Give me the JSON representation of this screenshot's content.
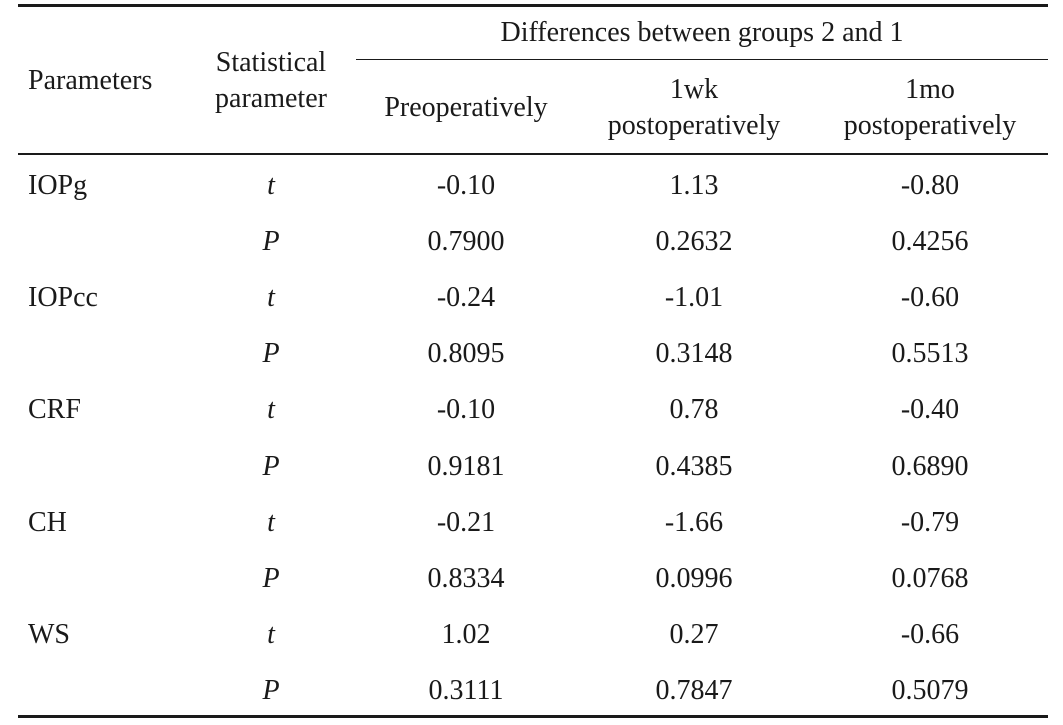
{
  "table": {
    "headers": {
      "parameters": "Parameters",
      "statistical_line1": "Statistical",
      "statistical_line2": "parameter",
      "group_header": "Differences between groups 2 and 1",
      "preoperatively": "Preoperatively",
      "wk_line1": "1wk",
      "wk_line2": "postoperatively",
      "mo_line1": "1mo",
      "mo_line2": "postoperatively"
    },
    "rows": [
      {
        "param": "IOPg",
        "stat": "t",
        "pre": "-0.10",
        "wk": "1.13",
        "mo": "-0.80"
      },
      {
        "param": "",
        "stat": "P",
        "pre": "0.7900",
        "wk": "0.2632",
        "mo": "0.4256"
      },
      {
        "param": "IOPcc",
        "stat": "t",
        "pre": "-0.24",
        "wk": "-1.01",
        "mo": "-0.60"
      },
      {
        "param": "",
        "stat": "P",
        "pre": "0.8095",
        "wk": "0.3148",
        "mo": "0.5513"
      },
      {
        "param": "CRF",
        "stat": "t",
        "pre": "-0.10",
        "wk": "0.78",
        "mo": "-0.40"
      },
      {
        "param": "",
        "stat": "P",
        "pre": "0.9181",
        "wk": "0.4385",
        "mo": "0.6890"
      },
      {
        "param": "CH",
        "stat": "t",
        "pre": "-0.21",
        "wk": "-1.66",
        "mo": "-0.79"
      },
      {
        "param": "",
        "stat": "P",
        "pre": "0.8334",
        "wk": "0.0996",
        "mo": "0.0768"
      },
      {
        "param": "WS",
        "stat": "t",
        "pre": "1.02",
        "wk": "0.27",
        "mo": "-0.66"
      },
      {
        "param": "",
        "stat": "P",
        "pre": "0.3111",
        "wk": "0.7847",
        "mo": "0.5079"
      }
    ]
  }
}
